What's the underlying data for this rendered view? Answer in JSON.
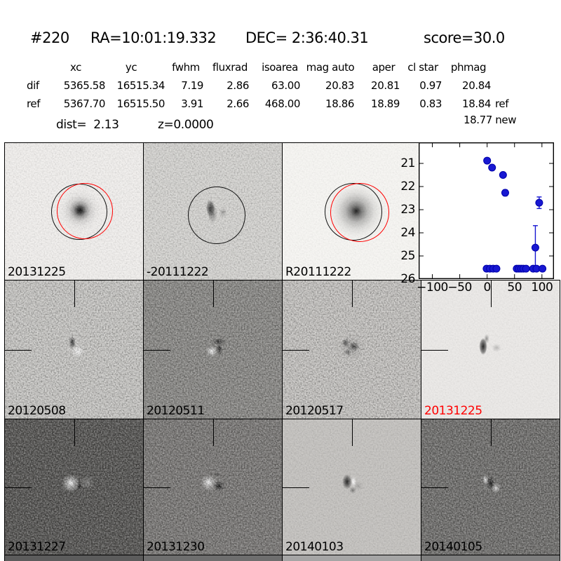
{
  "title": {
    "id": "#220",
    "ra": "RA=10:01:19.332",
    "dec": "DEC= 2:36:40.31",
    "score": "score=30.0"
  },
  "photometry": {
    "columns": [
      "xc",
      "yc",
      "fwhm",
      "fluxrad",
      "isoarea",
      "mag auto",
      "aper",
      "cl star",
      "phmag"
    ],
    "rows": [
      {
        "label": "dif",
        "values": [
          "5365.58",
          "16515.34",
          "7.19",
          "2.86",
          "63.00",
          "20.83",
          "20.81",
          "0.97",
          "20.84"
        ],
        "suffix": ""
      },
      {
        "label": "ref",
        "values": [
          "5367.70",
          "16515.50",
          "3.91",
          "2.66",
          "468.00",
          "18.86",
          "18.89",
          "0.83",
          "18.84"
        ],
        "suffix": "ref"
      }
    ],
    "extra_phmag": "18.77 new",
    "dist": "dist=  2.13",
    "z": "z=0.0000"
  },
  "panels": [
    {
      "label": "20131225",
      "label_color": "#000000"
    },
    {
      "label": "-20111222",
      "label_color": "#000000"
    },
    {
      "label": "R20111222",
      "label_color": "#000000"
    },
    {
      "label": "",
      "label_color": "#000000"
    },
    {
      "label": "20120508",
      "label_color": "#000000"
    },
    {
      "label": "20120511",
      "label_color": "#000000"
    },
    {
      "label": "20120517",
      "label_color": "#000000"
    },
    {
      "label": "20131225",
      "label_color": "#ff0000"
    },
    {
      "label": "20131227",
      "label_color": "#000000"
    },
    {
      "label": "20131230",
      "label_color": "#000000"
    },
    {
      "label": "20140103",
      "label_color": "#000000"
    },
    {
      "label": "20140105",
      "label_color": "#000000"
    }
  ],
  "chart_data": {
    "type": "scatter",
    "title": "",
    "xlabel": "",
    "ylabel": "",
    "xlim": [
      -125,
      122
    ],
    "ylim": [
      26,
      20.09
    ],
    "xticks": [
      -100,
      -50,
      0,
      50,
      100
    ],
    "yticks": [
      21,
      22,
      23,
      24,
      25,
      26
    ],
    "grid": false,
    "marker_color": "#1818d2",
    "marker_edge": "#0000aa",
    "points": [
      {
        "x": 0,
        "y": 20.88
      },
      {
        "x": 9,
        "y": 21.18
      },
      {
        "x": 29,
        "y": 21.5
      },
      {
        "x": 33,
        "y": 22.27,
        "yerr": 0.12
      },
      {
        "x": 95,
        "y": 22.7,
        "yerr": 0.25
      },
      {
        "x": 88,
        "y": 24.64,
        "yerr": 0.95
      },
      {
        "x": -1,
        "y": 25.55,
        "yerr": 0.1
      },
      {
        "x": 5,
        "y": 25.55,
        "yerr": 0.1
      },
      {
        "x": 11,
        "y": 25.55,
        "yerr": 0.1
      },
      {
        "x": 17,
        "y": 25.55,
        "yerr": 0.1
      },
      {
        "x": 54,
        "y": 25.55,
        "yerr": 0.1
      },
      {
        "x": 58,
        "y": 25.55,
        "yerr": 0.1
      },
      {
        "x": 62,
        "y": 25.55,
        "yerr": 0.1
      },
      {
        "x": 66,
        "y": 25.55,
        "yerr": 0.1
      },
      {
        "x": 71,
        "y": 25.55,
        "yerr": 0.1
      },
      {
        "x": 84,
        "y": 25.55,
        "yerr": 0.1
      },
      {
        "x": 90,
        "y": 25.55,
        "yerr": 0.1
      },
      {
        "x": 101,
        "y": 25.55,
        "yerr": 0.1
      }
    ]
  }
}
